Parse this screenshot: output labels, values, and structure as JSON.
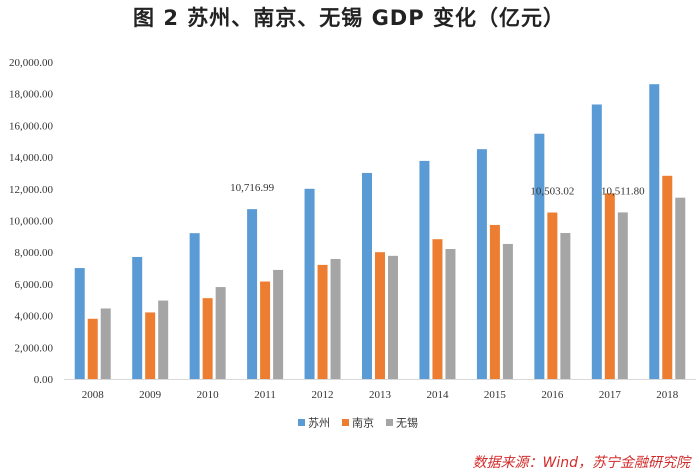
{
  "figure_title": "图 2   苏州、南京、无锡 GDP 变化（亿元）",
  "source_note": "数据来源：Wind，苏宁金融研究院",
  "colors": {
    "suzhou": "#5b9bd5",
    "nanjing": "#ed7d31",
    "wuxi": "#a5a5a5",
    "axis": "#d9d9d9"
  },
  "chart_data": {
    "type": "bar",
    "title": "苏州、南京、无锡 GDP 变化（亿元）",
    "xlabel": "",
    "ylabel": "",
    "ylim": [
      0,
      20000
    ],
    "yticks": [
      0,
      2000,
      4000,
      6000,
      8000,
      10000,
      12000,
      14000,
      16000,
      18000,
      20000
    ],
    "ytick_labels": [
      "0.00",
      "2,000.00",
      "4,000.00",
      "6,000.00",
      "8,000.00",
      "10,000.00",
      "12,000.00",
      "14,000.00",
      "16,000.00",
      "18,000.00",
      "20,000.00"
    ],
    "categories": [
      "2008",
      "2009",
      "2010",
      "2011",
      "2012",
      "2013",
      "2014",
      "2015",
      "2016",
      "2017",
      "2018"
    ],
    "series": [
      {
        "name": "苏州",
        "color_key": "suzhou",
        "values": [
          7000,
          7700,
          9200,
          10716.99,
          12000,
          13000,
          13760,
          14500,
          15475,
          17320,
          18600
        ]
      },
      {
        "name": "南京",
        "color_key": "nanjing",
        "values": [
          3800,
          4200,
          5100,
          6150,
          7200,
          8000,
          8820,
          9720,
          10503.02,
          11715,
          12820
        ]
      },
      {
        "name": "无锡",
        "color_key": "wuxi",
        "values": [
          4450,
          4950,
          5800,
          6880,
          7570,
          7770,
          8200,
          8520,
          9210,
          10511.8,
          11440
        ]
      }
    ],
    "annotations": [
      {
        "text": "10,716.99",
        "series": 0,
        "category": "2011"
      },
      {
        "text": "10,503.02",
        "series": 1,
        "category": "2016"
      },
      {
        "text": "10,511.80",
        "series": 2,
        "category": "2017"
      }
    ],
    "legend": {
      "position": "bottom-center",
      "entries": [
        "苏州",
        "南京",
        "无锡"
      ]
    },
    "grid": false
  }
}
